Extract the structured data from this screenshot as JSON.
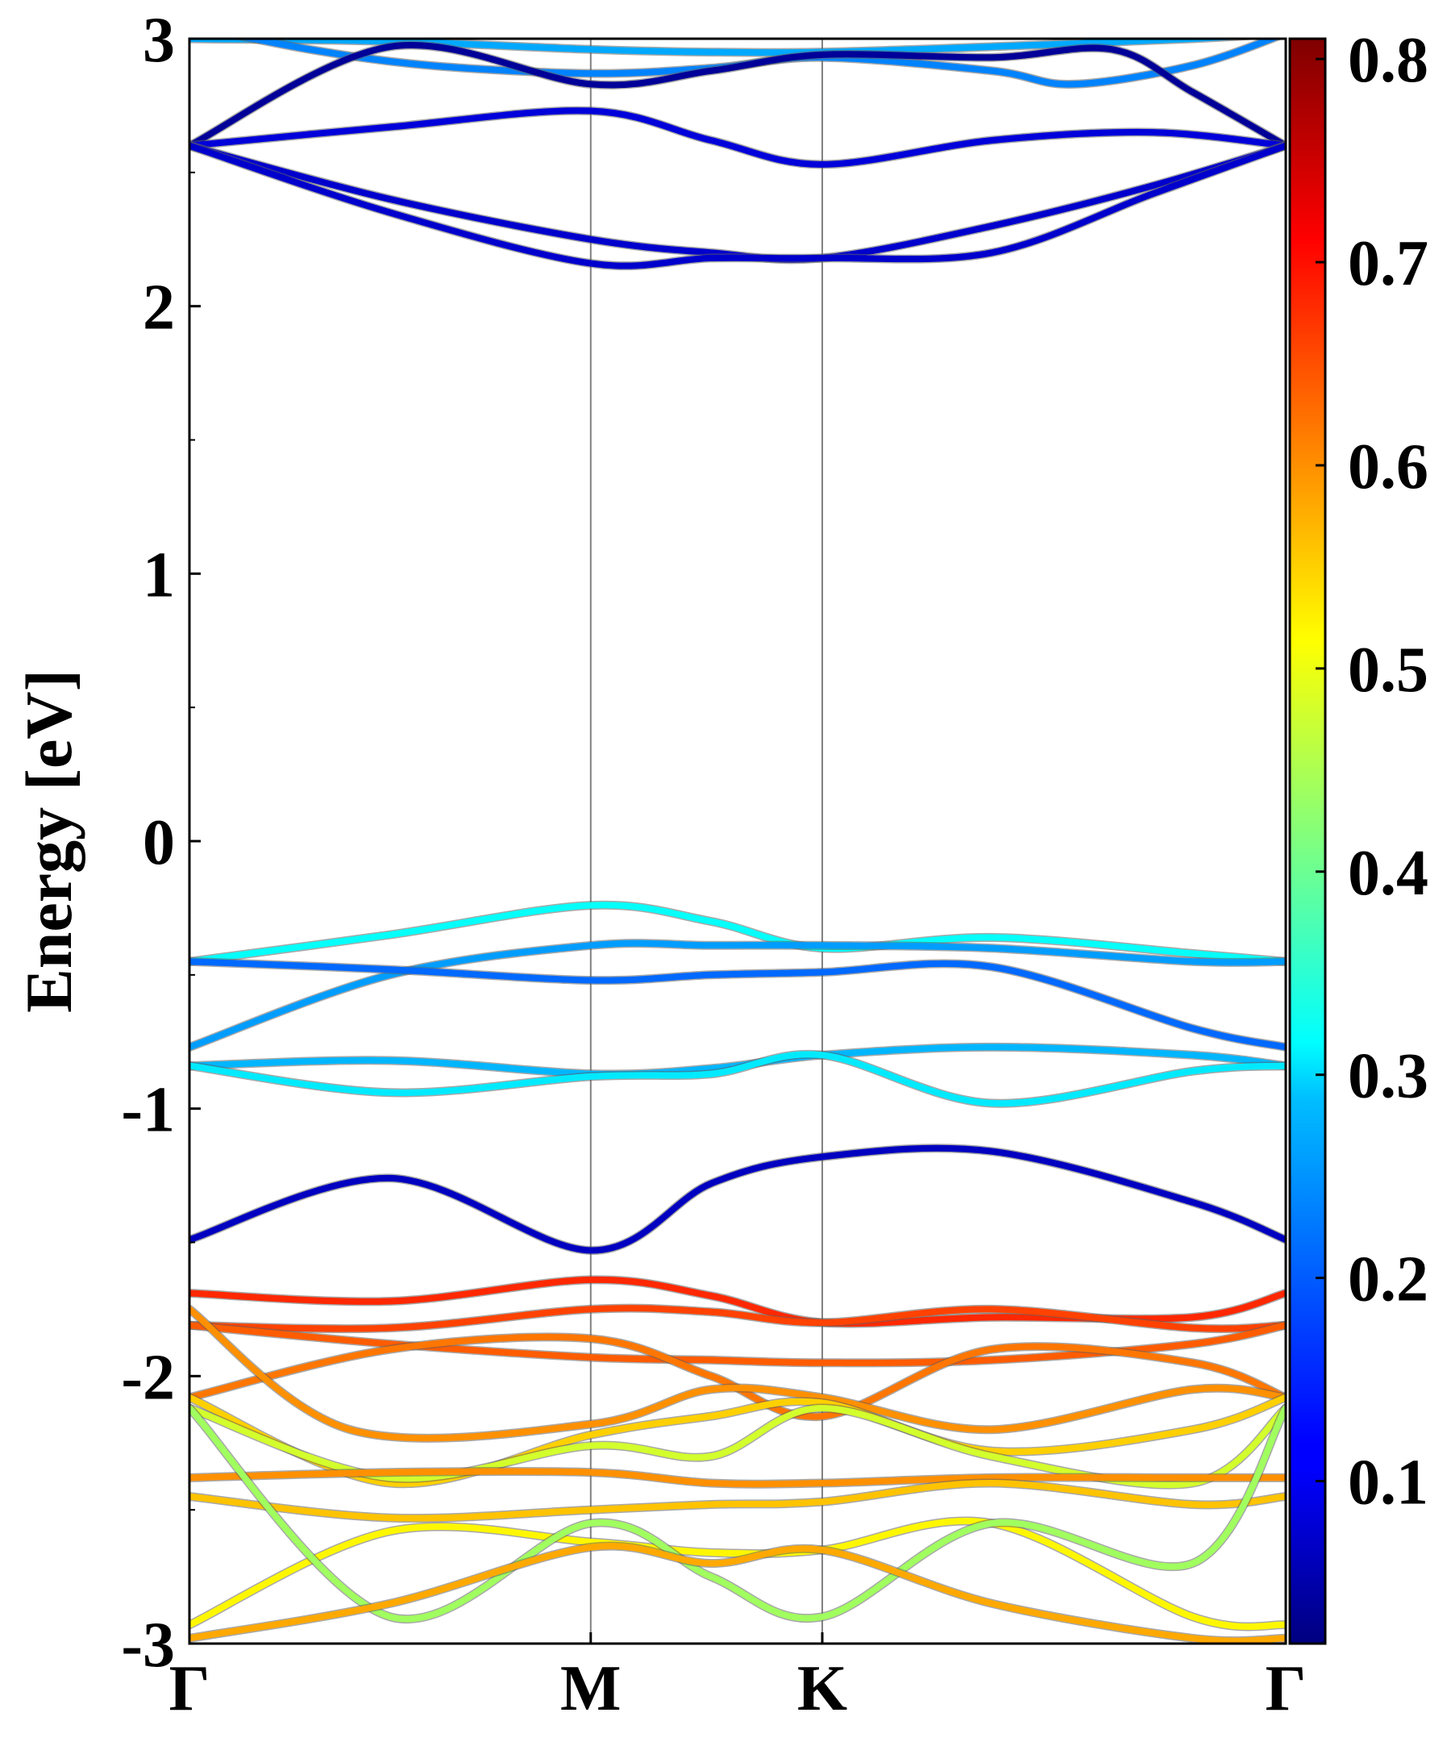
{
  "chart_data": {
    "type": "line",
    "title": "",
    "ylabel": "Energy [eV]",
    "xlabel": "",
    "ylim": [
      -3,
      3
    ],
    "yticks": [
      "-3",
      "-2",
      "-1",
      "0",
      "1",
      "2",
      "3"
    ],
    "k_path": {
      "labels": [
        "Γ",
        "M",
        "K",
        "Γ"
      ],
      "positions": [
        0,
        1,
        1.577,
        2.732
      ]
    },
    "colorbar": {
      "colormap": "jet",
      "range": [
        0.02,
        0.81
      ],
      "ticks": [
        "0.1",
        "0.2",
        "0.3",
        "0.4",
        "0.5",
        "0.6",
        "0.7",
        "0.8"
      ]
    },
    "series": [
      {
        "x": [
          0,
          0.5,
          1.0,
          1.3,
          1.577,
          2.0,
          2.5,
          2.732
        ],
        "y": [
          3.0,
          2.99,
          2.96,
          2.95,
          2.95,
          2.97,
          3.0,
          3.02
        ],
        "weight": 0.25
      },
      {
        "x": [
          0,
          0.3,
          0.6,
          1.0,
          1.3,
          1.577,
          2.0,
          2.2,
          2.5,
          2.732
        ],
        "y": [
          3.05,
          2.96,
          2.9,
          2.87,
          2.89,
          2.93,
          2.88,
          2.83,
          2.9,
          3.02
        ],
        "weight": 0.22
      },
      {
        "x": [
          0,
          0.5,
          1.0,
          1.3,
          1.577,
          2.0,
          2.3,
          2.5,
          2.732
        ],
        "y": [
          2.6,
          2.97,
          2.83,
          2.88,
          2.94,
          2.93,
          2.96,
          2.8,
          2.6
        ],
        "weight": 0.04
      },
      {
        "x": [
          0,
          0.5,
          1.0,
          1.3,
          1.577,
          2.0,
          2.4,
          2.732
        ],
        "y": [
          2.6,
          2.67,
          2.73,
          2.62,
          2.53,
          2.62,
          2.65,
          2.6
        ],
        "weight": 0.09
      },
      {
        "x": [
          0,
          0.5,
          1.0,
          1.3,
          1.577,
          2.0,
          2.4,
          2.732
        ],
        "y": [
          2.6,
          2.4,
          2.25,
          2.2,
          2.18,
          2.3,
          2.45,
          2.6
        ],
        "weight": 0.08
      },
      {
        "x": [
          0,
          0.5,
          1.0,
          1.3,
          1.577,
          2.0,
          2.4,
          2.732
        ],
        "y": [
          2.6,
          2.35,
          2.16,
          2.18,
          2.18,
          2.2,
          2.42,
          2.6
        ],
        "weight": 0.08
      },
      {
        "x": [
          0,
          0.5,
          1.0,
          1.3,
          1.577,
          2.0,
          2.5,
          2.732
        ],
        "y": [
          -0.45,
          -0.35,
          -0.24,
          -0.3,
          -0.4,
          -0.36,
          -0.42,
          -0.45
        ],
        "weight": 0.32
      },
      {
        "x": [
          0,
          0.5,
          1.0,
          1.3,
          1.577,
          2.0,
          2.5,
          2.732
        ],
        "y": [
          -0.77,
          -0.5,
          -0.39,
          -0.39,
          -0.39,
          -0.4,
          -0.45,
          -0.45
        ],
        "weight": 0.24
      },
      {
        "x": [
          0,
          0.5,
          1.0,
          1.3,
          1.577,
          2.0,
          2.5,
          2.732
        ],
        "y": [
          -0.45,
          -0.48,
          -0.52,
          -0.5,
          -0.49,
          -0.47,
          -0.7,
          -0.77
        ],
        "weight": 0.2
      },
      {
        "x": [
          0,
          0.5,
          1.0,
          1.3,
          1.577,
          2.0,
          2.5,
          2.732
        ],
        "y": [
          -0.84,
          -0.82,
          -0.87,
          -0.85,
          -0.8,
          -0.77,
          -0.8,
          -0.84
        ],
        "weight": 0.26
      },
      {
        "x": [
          0,
          0.5,
          1.0,
          1.3,
          1.577,
          2.0,
          2.5,
          2.732
        ],
        "y": [
          -0.84,
          -0.94,
          -0.88,
          -0.87,
          -0.8,
          -0.98,
          -0.86,
          -0.84
        ],
        "weight": 0.3
      },
      {
        "x": [
          0,
          0.5,
          1.0,
          1.3,
          1.577,
          2.0,
          2.5,
          2.732
        ],
        "y": [
          -1.49,
          -1.26,
          -1.53,
          -1.28,
          -1.18,
          -1.16,
          -1.35,
          -1.49
        ],
        "weight": 0.07
      },
      {
        "x": [
          0,
          0.5,
          1.0,
          1.3,
          1.577,
          2.0,
          2.5,
          2.732
        ],
        "y": [
          -1.69,
          -1.72,
          -1.64,
          -1.7,
          -1.8,
          -1.78,
          -1.78,
          -1.69
        ],
        "weight": 0.68
      },
      {
        "x": [
          0,
          0.5,
          1.0,
          1.3,
          1.577,
          2.0,
          2.5,
          2.732
        ],
        "y": [
          -1.81,
          -1.82,
          -1.75,
          -1.76,
          -1.8,
          -1.75,
          -1.82,
          -1.81
        ],
        "weight": 0.66
      },
      {
        "x": [
          0,
          0.5,
          1.0,
          1.3,
          1.577,
          2.0,
          2.5,
          2.732
        ],
        "y": [
          -1.81,
          -1.88,
          -1.93,
          -1.94,
          -1.95,
          -1.94,
          -1.88,
          -1.81
        ],
        "weight": 0.64
      },
      {
        "x": [
          0,
          0.5,
          1.0,
          1.3,
          1.577,
          2.0,
          2.5,
          2.732
        ],
        "y": [
          -2.08,
          -1.9,
          -1.86,
          -2.0,
          -2.15,
          -1.9,
          -1.95,
          -2.08
        ],
        "weight": 0.62
      },
      {
        "x": [
          0,
          0.4,
          1.0,
          1.3,
          1.577,
          2.0,
          2.5,
          2.732
        ],
        "y": [
          -1.75,
          -2.2,
          -2.18,
          -2.05,
          -2.08,
          -2.2,
          -2.05,
          -2.08
        ],
        "weight": 0.6
      },
      {
        "x": [
          0,
          0.5,
          1.0,
          1.3,
          1.577,
          2.0,
          2.5,
          2.732
        ],
        "y": [
          -2.08,
          -2.4,
          -2.22,
          -2.15,
          -2.1,
          -2.28,
          -2.2,
          -2.08
        ],
        "weight": 0.55
      },
      {
        "x": [
          0,
          0.5,
          1.0,
          1.3,
          1.577,
          2.0,
          2.5,
          2.732
        ],
        "y": [
          -2.12,
          -2.38,
          -2.26,
          -2.3,
          -2.12,
          -2.3,
          -2.4,
          -2.12
        ],
        "weight": 0.48
      },
      {
        "x": [
          0,
          0.5,
          1.0,
          1.3,
          1.577,
          2.0,
          2.5,
          2.732
        ],
        "y": [
          -2.38,
          -2.36,
          -2.36,
          -2.4,
          -2.4,
          -2.38,
          -2.38,
          -2.38
        ],
        "weight": 0.6
      },
      {
        "x": [
          0,
          0.5,
          1.0,
          1.3,
          1.577,
          2.0,
          2.5,
          2.732
        ],
        "y": [
          -2.45,
          -2.53,
          -2.5,
          -2.48,
          -2.47,
          -2.4,
          -2.48,
          -2.45
        ],
        "weight": 0.56
      },
      {
        "x": [
          0,
          0.5,
          1.0,
          1.3,
          1.577,
          2.0,
          2.5,
          2.732
        ],
        "y": [
          -2.93,
          -2.58,
          -2.62,
          -2.66,
          -2.65,
          -2.55,
          -2.9,
          -2.93
        ],
        "weight": 0.52
      },
      {
        "x": [
          0,
          0.5,
          1.0,
          1.3,
          1.577,
          2.0,
          2.5,
          2.732
        ],
        "y": [
          -2.12,
          -2.9,
          -2.55,
          -2.75,
          -2.9,
          -2.55,
          -2.7,
          -2.12
        ],
        "weight": 0.44
      },
      {
        "x": [
          0,
          0.5,
          1.0,
          1.3,
          1.577,
          2.0,
          2.5,
          2.732
        ],
        "y": [
          -2.98,
          -2.85,
          -2.64,
          -2.7,
          -2.65,
          -2.85,
          -2.98,
          -2.98
        ],
        "weight": 0.58
      }
    ]
  }
}
